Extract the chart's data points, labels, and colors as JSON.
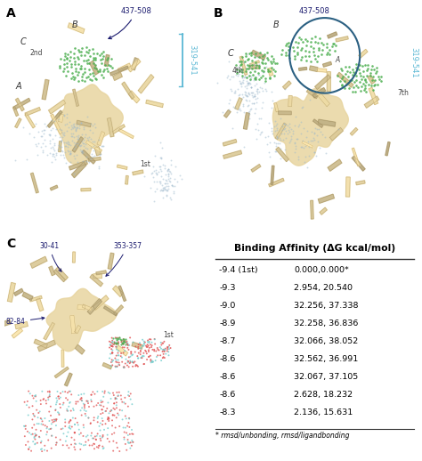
{
  "table_title": "Binding Affinity (ΔG kcal/mol)",
  "table_data": [
    [
      "-9.4 (1st)",
      "0.000,0.000*"
    ],
    [
      "-9.3",
      "2.954, 20.540"
    ],
    [
      "-9.0",
      "32.256, 37.338"
    ],
    [
      "-8.9",
      "32.258, 36.836"
    ],
    [
      "-8.7",
      "32.066, 38.052"
    ],
    [
      "-8.6",
      "32.562, 36.991"
    ],
    [
      "-8.6",
      "32.067, 37.105"
    ],
    [
      "-8.6",
      "2.628, 18.232"
    ],
    [
      "-8.3",
      "2.136, 15.631"
    ]
  ],
  "table_footnote": "* rmsd/unbonding, rmsd/ligandbonding",
  "bg_color": "#ffffff",
  "text_color": "#000000",
  "ann_dark": "#1a1a6e",
  "ann_cyan": "#5BB8D4",
  "green_dot": "#4CAF50",
  "blue_dot": "#9EB8CC",
  "red_dot": "#E05050",
  "cyan_dot": "#70CCCC",
  "protein_color": "#E8D5A0",
  "protein_dark": "#C4A96A",
  "protein_edge": "#8B7340"
}
